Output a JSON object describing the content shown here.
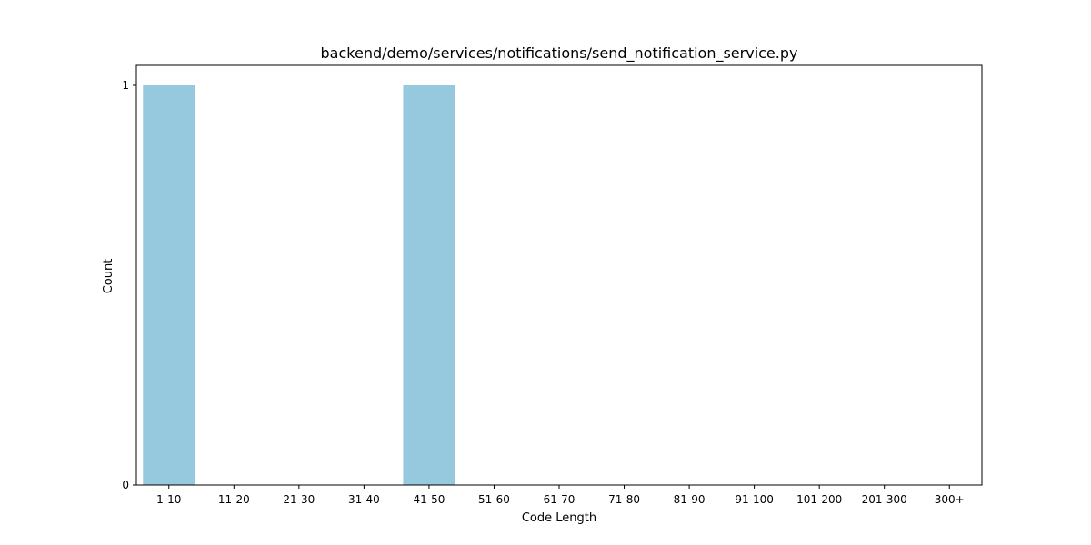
{
  "chart_data": {
    "type": "bar",
    "title": "backend/demo/services/notifications/send_notification_service.py",
    "xlabel": "Code Length",
    "ylabel": "Count",
    "categories": [
      "1-10",
      "11-20",
      "21-30",
      "31-40",
      "41-50",
      "51-60",
      "61-70",
      "71-80",
      "81-90",
      "91-100",
      "101-200",
      "201-300",
      "300+"
    ],
    "values": [
      1,
      0,
      0,
      0,
      1,
      0,
      0,
      0,
      0,
      0,
      0,
      0,
      0
    ],
    "yticks": [
      0,
      1
    ],
    "ylim": [
      0,
      1
    ],
    "grid": false,
    "bar_color": "#96c9dd"
  }
}
